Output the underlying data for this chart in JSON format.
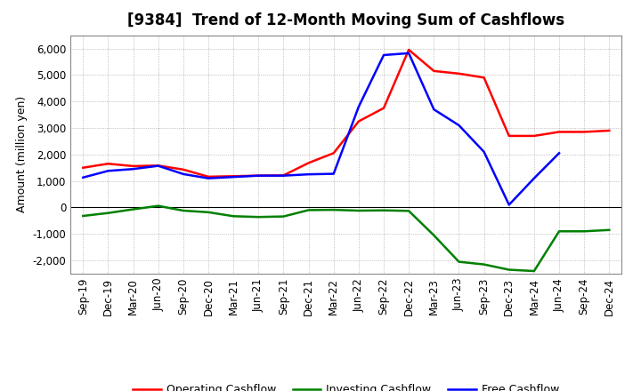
{
  "title": "[9384]  Trend of 12-Month Moving Sum of Cashflows",
  "ylabel": "Amount (million yen)",
  "background_color": "#ffffff",
  "plot_bg_color": "#ffffff",
  "grid_color": "#999999",
  "x_labels": [
    "Sep-19",
    "Dec-19",
    "Mar-20",
    "Jun-20",
    "Sep-20",
    "Dec-20",
    "Mar-21",
    "Jun-21",
    "Sep-21",
    "Dec-21",
    "Mar-22",
    "Jun-22",
    "Sep-22",
    "Dec-22",
    "Mar-23",
    "Jun-23",
    "Sep-23",
    "Dec-23",
    "Mar-24",
    "Jun-24",
    "Sep-24",
    "Dec-24"
  ],
  "operating_cashflow": [
    1500,
    1650,
    1560,
    1580,
    1430,
    1160,
    1180,
    1200,
    1210,
    1680,
    2050,
    3250,
    3750,
    5950,
    5150,
    5050,
    4900,
    2700,
    2700,
    2850,
    2850,
    2900
  ],
  "investing_cashflow": [
    -320,
    -210,
    -70,
    60,
    -120,
    -180,
    -330,
    -360,
    -340,
    -100,
    -90,
    -120,
    -110,
    -130,
    -1050,
    -2050,
    -2150,
    -2350,
    -2400,
    -900,
    -900,
    -850
  ],
  "free_cashflow": [
    1130,
    1380,
    1450,
    1570,
    1260,
    1100,
    1150,
    1200,
    1200,
    1250,
    1270,
    3800,
    5750,
    5820,
    3700,
    3100,
    2100,
    100,
    1100,
    2050,
    null,
    null
  ],
  "ylim": [
    -2500,
    6500
  ],
  "yticks": [
    -2000,
    -1000,
    0,
    1000,
    2000,
    3000,
    4000,
    5000,
    6000
  ],
  "line_colors": {
    "operating": "#ff0000",
    "investing": "#008000",
    "free": "#0000ff"
  },
  "legend_labels": [
    "Operating Cashflow",
    "Investing Cashflow",
    "Free Cashflow"
  ],
  "title_fontsize": 12,
  "axis_fontsize": 9,
  "tick_fontsize": 8.5
}
